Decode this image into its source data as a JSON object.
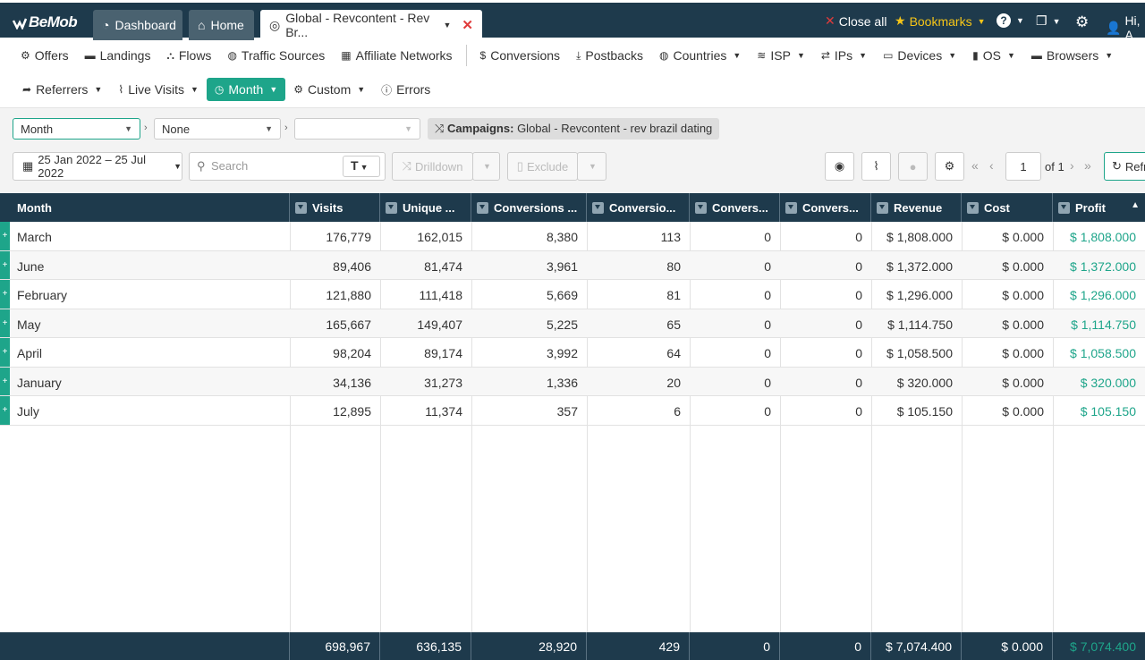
{
  "app": {
    "logo": "BeMob"
  },
  "tabs": [
    {
      "label": "Dashboard"
    },
    {
      "label": "Home"
    },
    {
      "label": "Global - Revcontent - Rev Br..."
    }
  ],
  "topright": {
    "close_all": "Close all",
    "bookmarks": "Bookmarks",
    "greeting": "Hi, A"
  },
  "nav1": [
    "Offers",
    "Landings",
    "Flows",
    "Traffic Sources",
    "Affiliate Networks",
    "Conversions",
    "Postbacks",
    "Countries",
    "ISP",
    "IPs",
    "Devices",
    "OS",
    "Browsers"
  ],
  "nav2": [
    "Referrers",
    "Live Visits",
    "Month",
    "Custom",
    "Errors"
  ],
  "filters": {
    "group1": "Month",
    "group2": "None",
    "group3": "",
    "chip_label": "Campaigns:",
    "chip_value": "Global - Revcontent - rev brazil dating",
    "date_range": "25 Jan 2022 – 25 Jul 2022",
    "search_placeholder": "Search",
    "drilldown": "Drilldown",
    "exclude": "Exclude",
    "page": "1",
    "of_pages": "of 1",
    "refresh": "Refr"
  },
  "columns": [
    "Month",
    "Visits",
    "Unique ...",
    "Conversions ...",
    "Conversio...",
    "Convers...",
    "Convers...",
    "Revenue",
    "Cost",
    "Profit"
  ],
  "rows": [
    [
      "March",
      "176,779",
      "162,015",
      "8,380",
      "113",
      "0",
      "0",
      "$ 1,808.000",
      "$ 0.000",
      "$ 1,808.000"
    ],
    [
      "June",
      "89,406",
      "81,474",
      "3,961",
      "80",
      "0",
      "0",
      "$ 1,372.000",
      "$ 0.000",
      "$ 1,372.000"
    ],
    [
      "February",
      "121,880",
      "111,418",
      "5,669",
      "81",
      "0",
      "0",
      "$ 1,296.000",
      "$ 0.000",
      "$ 1,296.000"
    ],
    [
      "May",
      "165,667",
      "149,407",
      "5,225",
      "65",
      "0",
      "0",
      "$ 1,114.750",
      "$ 0.000",
      "$ 1,114.750"
    ],
    [
      "April",
      "98,204",
      "89,174",
      "3,992",
      "64",
      "0",
      "0",
      "$ 1,058.500",
      "$ 0.000",
      "$ 1,058.500"
    ],
    [
      "January",
      "34,136",
      "31,273",
      "1,336",
      "20",
      "0",
      "0",
      "$ 320.000",
      "$ 0.000",
      "$ 320.000"
    ],
    [
      "July",
      "12,895",
      "11,374",
      "357",
      "6",
      "0",
      "0",
      "$ 105.150",
      "$ 0.000",
      "$ 105.150"
    ]
  ],
  "totals": [
    "",
    "698,967",
    "636,135",
    "28,920",
    "429",
    "0",
    "0",
    "$ 7,074.400",
    "$ 0.000",
    "$ 7,074.400"
  ],
  "colors": {
    "header": "#1e3a4c",
    "accent": "#1ea58a",
    "bookmark": "#f5c518",
    "close": "#e03b3b"
  }
}
